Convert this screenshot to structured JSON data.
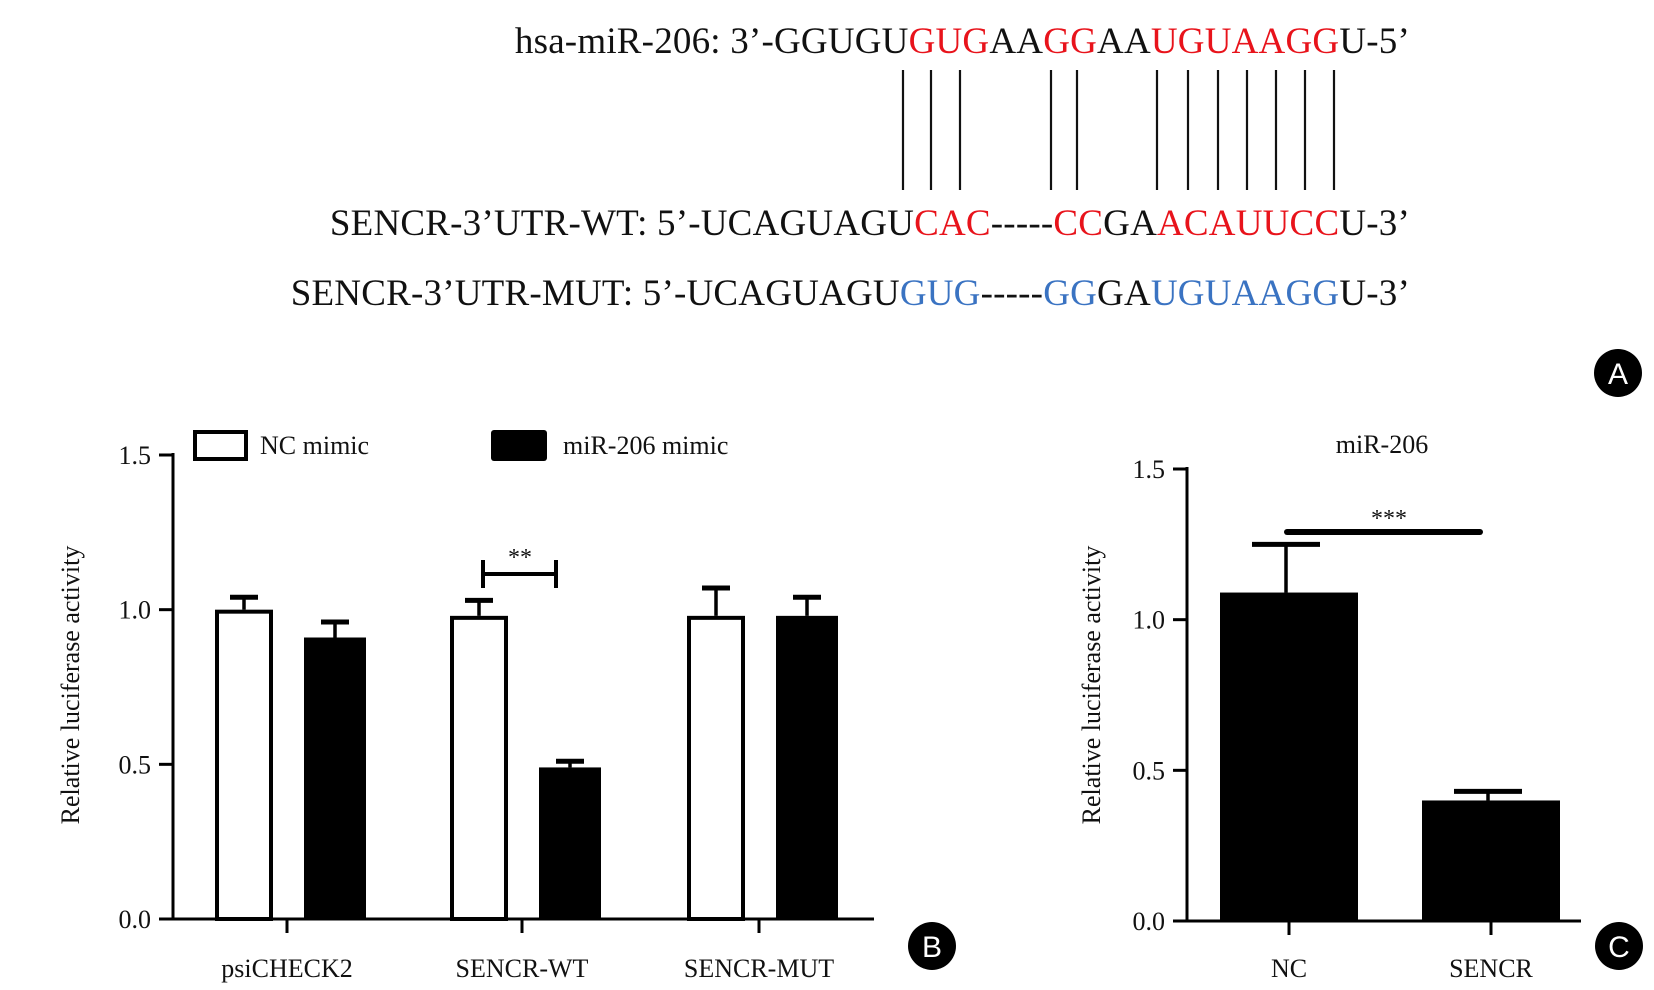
{
  "panel_a": {
    "mir": [
      {
        "t": "hsa-miR-206: 3’-GGUGU",
        "c": ""
      },
      {
        "t": "GUG",
        "c": "r"
      },
      {
        "t": "AA",
        "c": ""
      },
      {
        "t": "GG",
        "c": "r"
      },
      {
        "t": "AA",
        "c": ""
      },
      {
        "t": "UGUAAGG",
        "c": "r"
      },
      {
        "t": "U-5’",
        "c": ""
      }
    ],
    "wt": [
      {
        "t": "SENCR-3’UTR-WT: 5’-UCAGUAGU",
        "c": ""
      },
      {
        "t": "CAC",
        "c": "r"
      },
      {
        "t": "-----",
        "c": ""
      },
      {
        "t": "CC",
        "c": "r"
      },
      {
        "t": "GA",
        "c": ""
      },
      {
        "t": "ACAUUCC",
        "c": "r"
      },
      {
        "t": "U-3’",
        "c": ""
      }
    ],
    "mut": [
      {
        "t": "SENCR-3’UTR-MUT: 5’-UCAGUAGU",
        "c": ""
      },
      {
        "t": "GUG",
        "c": "b"
      },
      {
        "t": "-----",
        "c": ""
      },
      {
        "t": "GG",
        "c": "b"
      },
      {
        "t": "GA",
        "c": ""
      },
      {
        "t": "UGUAAGG",
        "c": "b"
      },
      {
        "t": "U-3’",
        "c": ""
      }
    ],
    "colors": {
      "match": "#e8131b",
      "mutant": "#3a73c2"
    }
  },
  "panel_labels": {
    "a": "A",
    "b": "B",
    "c": "C"
  },
  "chart_data": [
    {
      "type": "bar",
      "panel": "B",
      "title": "",
      "xlabel": "",
      "ylabel": "Relative luciferase activity",
      "ylim": [
        0,
        1.5
      ],
      "yticks": [
        "0.0",
        "0.5",
        "1.0",
        "1.5"
      ],
      "categories": [
        "psiCHECK2",
        "SENCR-WT",
        "SENCR-MUT"
      ],
      "legend_position": "top",
      "series": [
        {
          "name": "NC mimic",
          "style": "open",
          "values": [
            1.0,
            0.98,
            0.98
          ],
          "errors": [
            0.04,
            0.05,
            0.09
          ]
        },
        {
          "name": "miR-206 mimic",
          "style": "filled",
          "values": [
            0.91,
            0.49,
            0.98
          ],
          "errors": [
            0.05,
            0.02,
            0.06
          ]
        }
      ],
      "annotations": [
        {
          "text": "**",
          "category": "SENCR-WT"
        }
      ]
    },
    {
      "type": "bar",
      "panel": "C",
      "title": "miR-206",
      "xlabel": "",
      "ylabel": "Relative luciferase activity",
      "ylim": [
        0,
        1.5
      ],
      "yticks": [
        "0.0",
        "0.5",
        "1.0",
        "1.5"
      ],
      "categories": [
        "NC",
        "SENCR"
      ],
      "values": [
        1.09,
        0.4
      ],
      "errors": [
        0.16,
        0.03
      ],
      "annotations": [
        {
          "text": "***",
          "between": [
            "NC",
            "SENCR"
          ]
        }
      ]
    }
  ]
}
